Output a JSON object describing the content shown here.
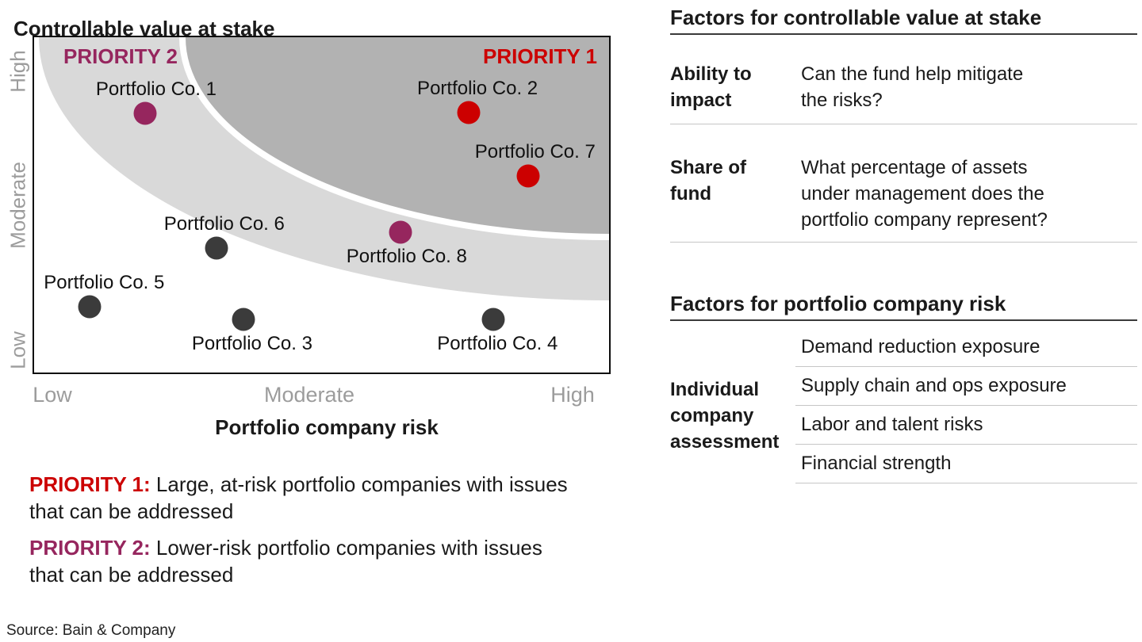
{
  "colors": {
    "priority1": "#CC0000",
    "priority2": "#96265E",
    "neutral_dot": "#3B3B3B",
    "band_light": "#D9D9D9",
    "band_dark": "#B2B2B2",
    "axis_text": "#9C9C9C",
    "rule_dark": "#3A3A3A",
    "rule_light": "#C6C6C6",
    "text": "#1A1A1A"
  },
  "chart": {
    "title": "Controllable value at stake",
    "x_axis": {
      "title": "Portfolio company risk",
      "ticks": [
        "Low",
        "Moderate",
        "High"
      ]
    },
    "y_axis": {
      "ticks_top_to_bottom": [
        "High",
        "Moderate",
        "Low"
      ]
    },
    "regions": [
      {
        "label": "PRIORITY 1",
        "zone": "upper-right dark gray region"
      },
      {
        "label": "PRIORITY 2",
        "zone": "curved light gray band"
      }
    ]
  },
  "chart_data": {
    "type": "scatter",
    "title": "Controllable value at stake",
    "xlabel": "Portfolio company risk",
    "ylabel": "Controllable value at stake",
    "x_scale_labels": [
      "Low",
      "Moderate",
      "High"
    ],
    "y_scale_labels": [
      "Low",
      "Moderate",
      "High"
    ],
    "x_range": [
      0,
      1
    ],
    "y_range": [
      0,
      1
    ],
    "grid": false,
    "points": [
      {
        "label": "Portfolio Co. 1",
        "x": 0.193,
        "y": 0.773,
        "color": "priority2",
        "priority": "PRIORITY 2",
        "label_side": "above",
        "label_dx": 14
      },
      {
        "label": "Portfolio Co. 2",
        "x": 0.756,
        "y": 0.775,
        "color": "priority1",
        "priority": "PRIORITY 1",
        "label_side": "above",
        "label_dx": 11
      },
      {
        "label": "Portfolio Co. 7",
        "x": 0.859,
        "y": 0.586,
        "color": "priority1",
        "priority": "PRIORITY 1",
        "label_side": "above",
        "label_dx": 9
      },
      {
        "label": "Portfolio Co. 8",
        "x": 0.637,
        "y": 0.418,
        "color": "priority2",
        "priority": "PRIORITY 2",
        "label_side": "below",
        "label_dx": 8
      },
      {
        "label": "Portfolio Co. 6",
        "x": 0.317,
        "y": 0.371,
        "color": "neutral_dot",
        "priority": "none",
        "label_side": "above",
        "label_dx": 10
      },
      {
        "label": "Portfolio Co. 5",
        "x": 0.097,
        "y": 0.196,
        "color": "neutral_dot",
        "priority": "none",
        "label_side": "above",
        "label_dx": 18
      },
      {
        "label": "Portfolio Co. 3",
        "x": 0.364,
        "y": 0.158,
        "color": "neutral_dot",
        "priority": "none",
        "label_side": "below",
        "label_dx": 11
      },
      {
        "label": "Portfolio Co. 4",
        "x": 0.799,
        "y": 0.158,
        "color": "neutral_dot",
        "priority": "none",
        "label_side": "below",
        "label_dx": 5
      }
    ]
  },
  "legend": [
    {
      "term": "PRIORITY 1:",
      "text": " Large, at-risk portfolio companies with issues that can be addressed"
    },
    {
      "term": "PRIORITY 2:",
      "text": " Lower-risk portfolio companies with issues that can be addressed"
    }
  ],
  "factors_value": {
    "title": "Factors for controllable value at stake",
    "rows": [
      {
        "label": "Ability to\nimpact",
        "question": "Can the fund help mitigate\nthe risks?"
      },
      {
        "label": "Share of\nfund",
        "question": "What percentage of assets\nunder management does the\nportfolio company represent?"
      }
    ]
  },
  "factors_risk": {
    "title": "Factors for portfolio company risk",
    "row_label": "Individual\ncompany\nassessment",
    "items": [
      "Demand reduction exposure",
      "Supply chain and ops exposure",
      "Labor and talent risks",
      "Financial strength"
    ]
  },
  "source": "Source: Bain & Company"
}
